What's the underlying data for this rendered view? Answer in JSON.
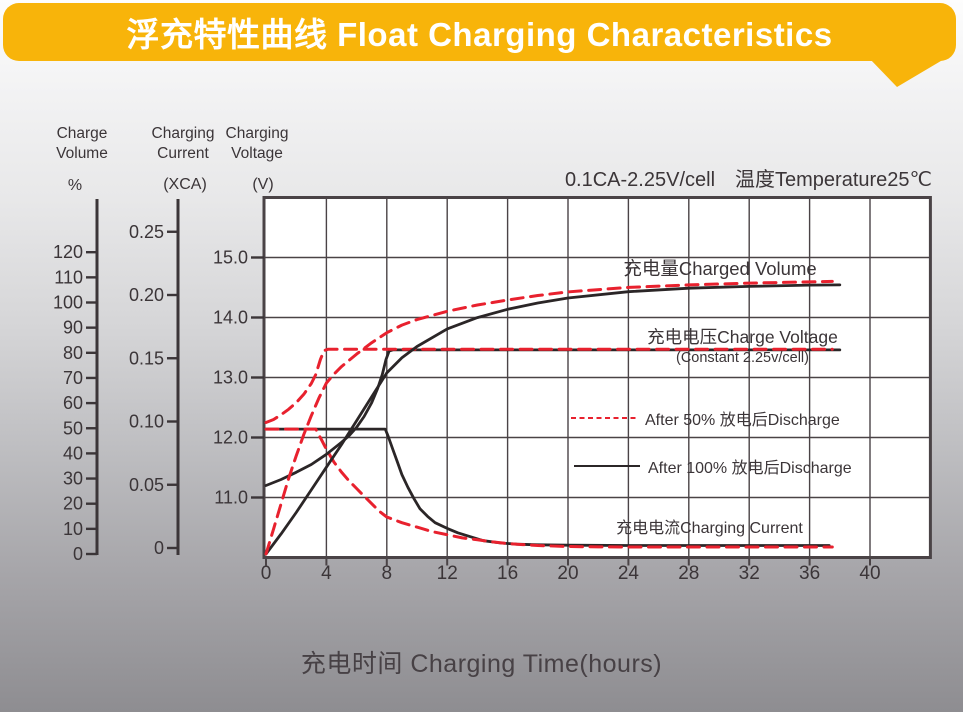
{
  "banner": {
    "title": "浮充特性曲线 Float Charging Characteristics",
    "color": "#F8B40A"
  },
  "condition_label": "0.1CA-2.25V/cell　温度Temperature25℃",
  "annotations": {
    "charged_volume": "充电量Charged Volume",
    "charge_voltage": "充电电压Charge Voltage",
    "charge_voltage_sub": "(Constant 2.25v/cell)",
    "charging_current": "充电电流Charging Current"
  },
  "legend": [
    {
      "label": "After 50% 放电后Discharge",
      "style": "dashed",
      "color": "#E8212E"
    },
    {
      "label": "After 100% 放电后Discharge",
      "style": "solid",
      "color": "#2B2627"
    }
  ],
  "chart_data": {
    "type": "line",
    "title": "浮充特性曲线 Float Charging Characteristics",
    "condition": "0.1CA-2.25V/cell 温度Temperature25℃",
    "xlabel": "充电时间 Charging Time(hours)",
    "grid": true,
    "colors": {
      "red": "#E8212E",
      "black": "#2B2627",
      "grid": "#4A4346",
      "text": "#3B3538"
    },
    "x_axis": {
      "label": "Charging Time (hours)",
      "ticks": [
        0,
        4,
        8,
        12,
        16,
        20,
        24,
        28,
        32,
        36,
        40
      ],
      "range": [
        0,
        44
      ]
    },
    "axes": [
      {
        "id": "volume",
        "title_lines": [
          "Charge",
          "Volume"
        ],
        "unit": "%",
        "ticks": [
          0,
          10,
          20,
          30,
          40,
          50,
          60,
          70,
          80,
          90,
          100,
          110,
          120
        ],
        "range": [
          0,
          120
        ]
      },
      {
        "id": "current",
        "title_lines": [
          "Charging",
          "Current"
        ],
        "unit": "(XCA)",
        "ticks": [
          "0",
          "0.05",
          "0.10",
          "0.15",
          "0.20",
          "0.25"
        ],
        "range": [
          0,
          0.25
        ]
      },
      {
        "id": "voltage",
        "title_lines": [
          "Charging",
          "Voltage"
        ],
        "unit": "(V)",
        "ticks": [
          "11.0",
          "12.0",
          "13.0",
          "14.0",
          "15.0"
        ],
        "range": [
          10,
          16
        ]
      }
    ],
    "series": [
      {
        "id": "current-after-100",
        "label": "充电电流Charging Current — After 100% 放电后Discharge",
        "axis": "current",
        "color": "#2B2627",
        "dashed": false,
        "width": 2.8,
        "points": [
          [
            0,
            0.094
          ],
          [
            7.9,
            0.094
          ],
          [
            8.1,
            0.088
          ],
          [
            8.4,
            0.078
          ],
          [
            8.7,
            0.068
          ],
          [
            9,
            0.058
          ],
          [
            9.4,
            0.048
          ],
          [
            9.8,
            0.039
          ],
          [
            10.2,
            0.031
          ],
          [
            10.7,
            0.025
          ],
          [
            11.2,
            0.02
          ],
          [
            12,
            0.0155
          ],
          [
            12.7,
            0.012
          ],
          [
            13.5,
            0.009
          ],
          [
            14.4,
            0.0058
          ],
          [
            15.5,
            0.004
          ],
          [
            16.6,
            0.003
          ],
          [
            18,
            0.0025
          ],
          [
            20,
            0.0022
          ],
          [
            24,
            0.002
          ],
          [
            28,
            0.002
          ],
          [
            32,
            0.002
          ],
          [
            36,
            0.002
          ],
          [
            37.3,
            0.002
          ]
        ]
      },
      {
        "id": "current-after-50",
        "label": "充电电流Charging Current — After 50% 放电后Discharge",
        "axis": "current",
        "color": "#E8212E",
        "dashed": true,
        "width": 3,
        "points": [
          [
            0,
            0.094
          ],
          [
            3.3,
            0.094
          ],
          [
            3.7,
            0.085
          ],
          [
            4,
            0.078
          ],
          [
            4.5,
            0.068
          ],
          [
            5,
            0.06
          ],
          [
            5.5,
            0.053
          ],
          [
            6,
            0.047
          ],
          [
            6.5,
            0.041
          ],
          [
            7,
            0.035
          ],
          [
            7.5,
            0.029
          ],
          [
            8,
            0.0245
          ],
          [
            9,
            0.02
          ],
          [
            10,
            0.0165
          ],
          [
            11,
            0.013
          ],
          [
            12,
            0.0105
          ],
          [
            13,
            0.008
          ],
          [
            14,
            0.0065
          ],
          [
            15,
            0.0048
          ],
          [
            16,
            0.0035
          ],
          [
            17,
            0.0027
          ],
          [
            18,
            0.002
          ],
          [
            20,
            0.0012
          ],
          [
            22,
            0.0009
          ],
          [
            24,
            0.0008
          ],
          [
            28,
            0.0008
          ],
          [
            32,
            0.0008
          ],
          [
            36,
            0.0008
          ],
          [
            37.5,
            0.0008
          ]
        ]
      },
      {
        "id": "voltage-after-100",
        "label": "充电电压Charge Voltage — After 100% 放电后Discharge",
        "axis": "voltage",
        "color": "#2B2627",
        "dashed": false,
        "width": 2.8,
        "points": [
          [
            0,
            11.2
          ],
          [
            1,
            11.3
          ],
          [
            2,
            11.42
          ],
          [
            3,
            11.55
          ],
          [
            4,
            11.72
          ],
          [
            5,
            11.92
          ],
          [
            5.5,
            12.03
          ],
          [
            6,
            12.17
          ],
          [
            6.5,
            12.35
          ],
          [
            7,
            12.58
          ],
          [
            7.4,
            12.82
          ],
          [
            7.7,
            13.05
          ],
          [
            7.95,
            13.3
          ],
          [
            8.15,
            13.44
          ],
          [
            8.4,
            13.46
          ],
          [
            16,
            13.46
          ],
          [
            28,
            13.46
          ],
          [
            38,
            13.46
          ]
        ]
      },
      {
        "id": "voltage-after-50",
        "label": "充电电压Charge Voltage — After 50% 放电后Discharge",
        "axis": "voltage",
        "color": "#E8212E",
        "dashed": true,
        "width": 3,
        "points": [
          [
            0,
            12.25
          ],
          [
            0.5,
            12.3
          ],
          [
            1,
            12.38
          ],
          [
            1.5,
            12.47
          ],
          [
            2,
            12.58
          ],
          [
            2.5,
            12.72
          ],
          [
            3,
            12.9
          ],
          [
            3.3,
            13.05
          ],
          [
            3.6,
            13.3
          ],
          [
            3.85,
            13.45
          ],
          [
            4.1,
            13.47
          ],
          [
            8,
            13.47
          ],
          [
            16,
            13.47
          ],
          [
            28,
            13.47
          ],
          [
            37.5,
            13.47
          ]
        ]
      },
      {
        "id": "volume-after-100",
        "label": "充电量Charged Volume — After 100% 放电后Discharge",
        "axis": "volume",
        "color": "#2B2627",
        "dashed": false,
        "width": 2.8,
        "points": [
          [
            0,
            0
          ],
          [
            1,
            8
          ],
          [
            2,
            16.5
          ],
          [
            3,
            25.5
          ],
          [
            4,
            34.5
          ],
          [
            5,
            43.5
          ],
          [
            6,
            53
          ],
          [
            7,
            62.5
          ],
          [
            8,
            72
          ],
          [
            9,
            78
          ],
          [
            10,
            82.5
          ],
          [
            12,
            89.5
          ],
          [
            14,
            94
          ],
          [
            16,
            97.3
          ],
          [
            18,
            99.8
          ],
          [
            20,
            101.8
          ],
          [
            24,
            104.3
          ],
          [
            28,
            105.7
          ],
          [
            32,
            106.4
          ],
          [
            36,
            106.9
          ],
          [
            38,
            107
          ]
        ]
      },
      {
        "id": "volume-after-50",
        "label": "充电量Charged Volume — After 50% 放电后Discharge",
        "axis": "volume",
        "color": "#E8212E",
        "dashed": true,
        "width": 3,
        "points": [
          [
            0,
            0
          ],
          [
            0.5,
            10
          ],
          [
            1,
            20
          ],
          [
            1.5,
            30
          ],
          [
            2,
            39
          ],
          [
            2.5,
            47.5
          ],
          [
            3,
            55
          ],
          [
            3.5,
            62
          ],
          [
            4,
            68
          ],
          [
            4.5,
            71.5
          ],
          [
            5,
            74.5
          ],
          [
            6,
            79.5
          ],
          [
            7,
            84
          ],
          [
            8,
            88
          ],
          [
            9,
            91
          ],
          [
            10,
            93.2
          ],
          [
            12,
            96.5
          ],
          [
            14,
            99
          ],
          [
            16,
            101
          ],
          [
            18,
            102.8
          ],
          [
            20,
            104.2
          ],
          [
            24,
            106
          ],
          [
            28,
            107
          ],
          [
            32,
            107.7
          ],
          [
            36,
            108.2
          ],
          [
            37.5,
            108.4
          ]
        ]
      }
    ]
  }
}
